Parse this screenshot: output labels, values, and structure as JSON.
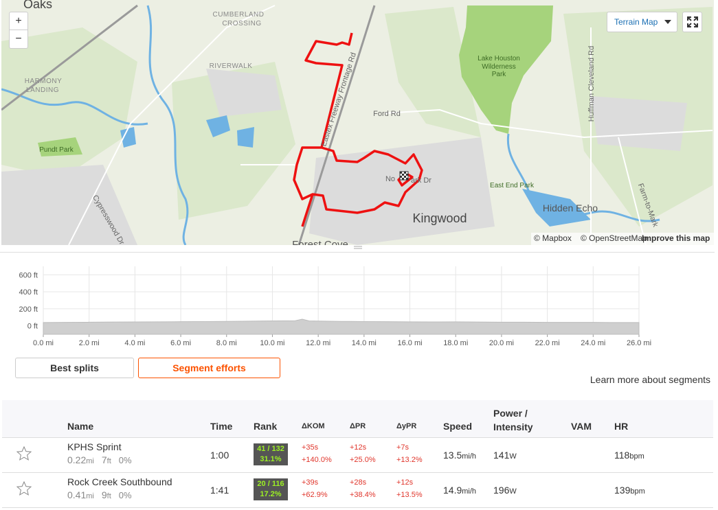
{
  "map": {
    "controls": {
      "zoom_in": "+",
      "zoom_out": "−",
      "style": "Terrain Map"
    },
    "labels": [
      "Oaks",
      "CUMBERLAND",
      "CROSSING",
      "RIVERWALK",
      "HARMONY",
      "LANDING",
      "Pundt Park",
      "Ford Rd",
      "Eastex Freeway Frontage Rd",
      "Lake Houston",
      "Wilderness",
      "Park",
      "Huffman Cleveland Rd",
      "East End Park",
      "Hidden Echo",
      "Kingwood",
      "Forest Cove",
      "Cypresswood Dr",
      "Farm-to-Mark",
      "No",
      "ark Dr"
    ],
    "attribution": {
      "mapbox": "© Mapbox",
      "osm": "© OpenStreetMap",
      "improve": "Improve this map"
    }
  },
  "chart_data": {
    "type": "area",
    "x": [
      0,
      1,
      2,
      3,
      4,
      5,
      6,
      7,
      8,
      9,
      10,
      11,
      11.3,
      11.6,
      12,
      13,
      14,
      15,
      16,
      17,
      18,
      19,
      20,
      21,
      22,
      23,
      24,
      25,
      26
    ],
    "series": [
      {
        "color": "#cfcfcf",
        "values": [
          38,
          40,
          42,
          44,
          45,
          46,
          48,
          50,
          52,
          55,
          58,
          60,
          78,
          58,
          56,
          52,
          50,
          48,
          46,
          45,
          46,
          44,
          42,
          42,
          40,
          40,
          40,
          38,
          38
        ]
      }
    ],
    "xlim": [
      0,
      26
    ],
    "ylim": [
      -100,
      700
    ],
    "xticks": [
      {
        "value": 0,
        "label": "0.0 mi"
      },
      {
        "value": 2,
        "label": "2.0 mi"
      },
      {
        "value": 4,
        "label": "4.0 mi"
      },
      {
        "value": 6,
        "label": "6.0 mi"
      },
      {
        "value": 8,
        "label": "8.0 mi"
      },
      {
        "value": 10,
        "label": "10.0 mi"
      },
      {
        "value": 12,
        "label": "12.0 mi"
      },
      {
        "value": 14,
        "label": "14.0 mi"
      },
      {
        "value": 16,
        "label": "16.0 mi"
      },
      {
        "value": 18,
        "label": "18.0 mi"
      },
      {
        "value": 20,
        "label": "20.0 mi"
      },
      {
        "value": 22,
        "label": "22.0 mi"
      },
      {
        "value": 24,
        "label": "24.0 mi"
      },
      {
        "value": 26,
        "label": "26.0 mi"
      }
    ],
    "yticks": [
      {
        "value": 0,
        "label": "0 ft"
      },
      {
        "value": 200,
        "label": "200 ft"
      },
      {
        "value": 400,
        "label": "400 ft"
      },
      {
        "value": 600,
        "label": "600 ft"
      }
    ],
    "grid": true
  },
  "tabs": [
    "Best splits",
    "Segment efforts"
  ],
  "learn_more": "Learn more about segments",
  "table": {
    "headers": [
      "Name",
      "Time",
      "Rank",
      "ΔKOM",
      "ΔPR",
      "ΔyPR",
      "Speed",
      "Power / Intensity",
      "VAM",
      "HR"
    ],
    "rows": [
      {
        "name": "KPHS Sprint",
        "distance": "0.22",
        "distance_unit": "mi",
        "elevation": "7",
        "elevation_unit": "ft",
        "grade": "0%",
        "time": "1:00",
        "rank": "41 / 132",
        "rank_percent": "31.1%",
        "kom_time": "+35s",
        "kom_percent": "+140.0%",
        "pr_time": "+12s",
        "pr_percent": "+25.0%",
        "ypr_time": "+7s",
        "ypr_percent": "+13.2%",
        "speed": "13.5",
        "speed_unit": "mi/h",
        "power": "141",
        "power_unit": "W",
        "hr": "118",
        "hr_unit": "bpm"
      },
      {
        "name": "Rock Creek Southbound",
        "distance": "0.41",
        "distance_unit": "mi",
        "elevation": "9",
        "elevation_unit": "ft",
        "grade": "0%",
        "time": "1:41",
        "rank": "20 / 116",
        "rank_percent": "17.2%",
        "kom_time": "+39s",
        "kom_percent": "+62.9%",
        "pr_time": "+28s",
        "pr_percent": "+38.4%",
        "ypr_time": "+12s",
        "ypr_percent": "+13.5%",
        "speed": "14.9",
        "speed_unit": "mi/h",
        "power": "196",
        "power_unit": "W",
        "hr": "139",
        "hr_unit": "bpm"
      }
    ]
  }
}
